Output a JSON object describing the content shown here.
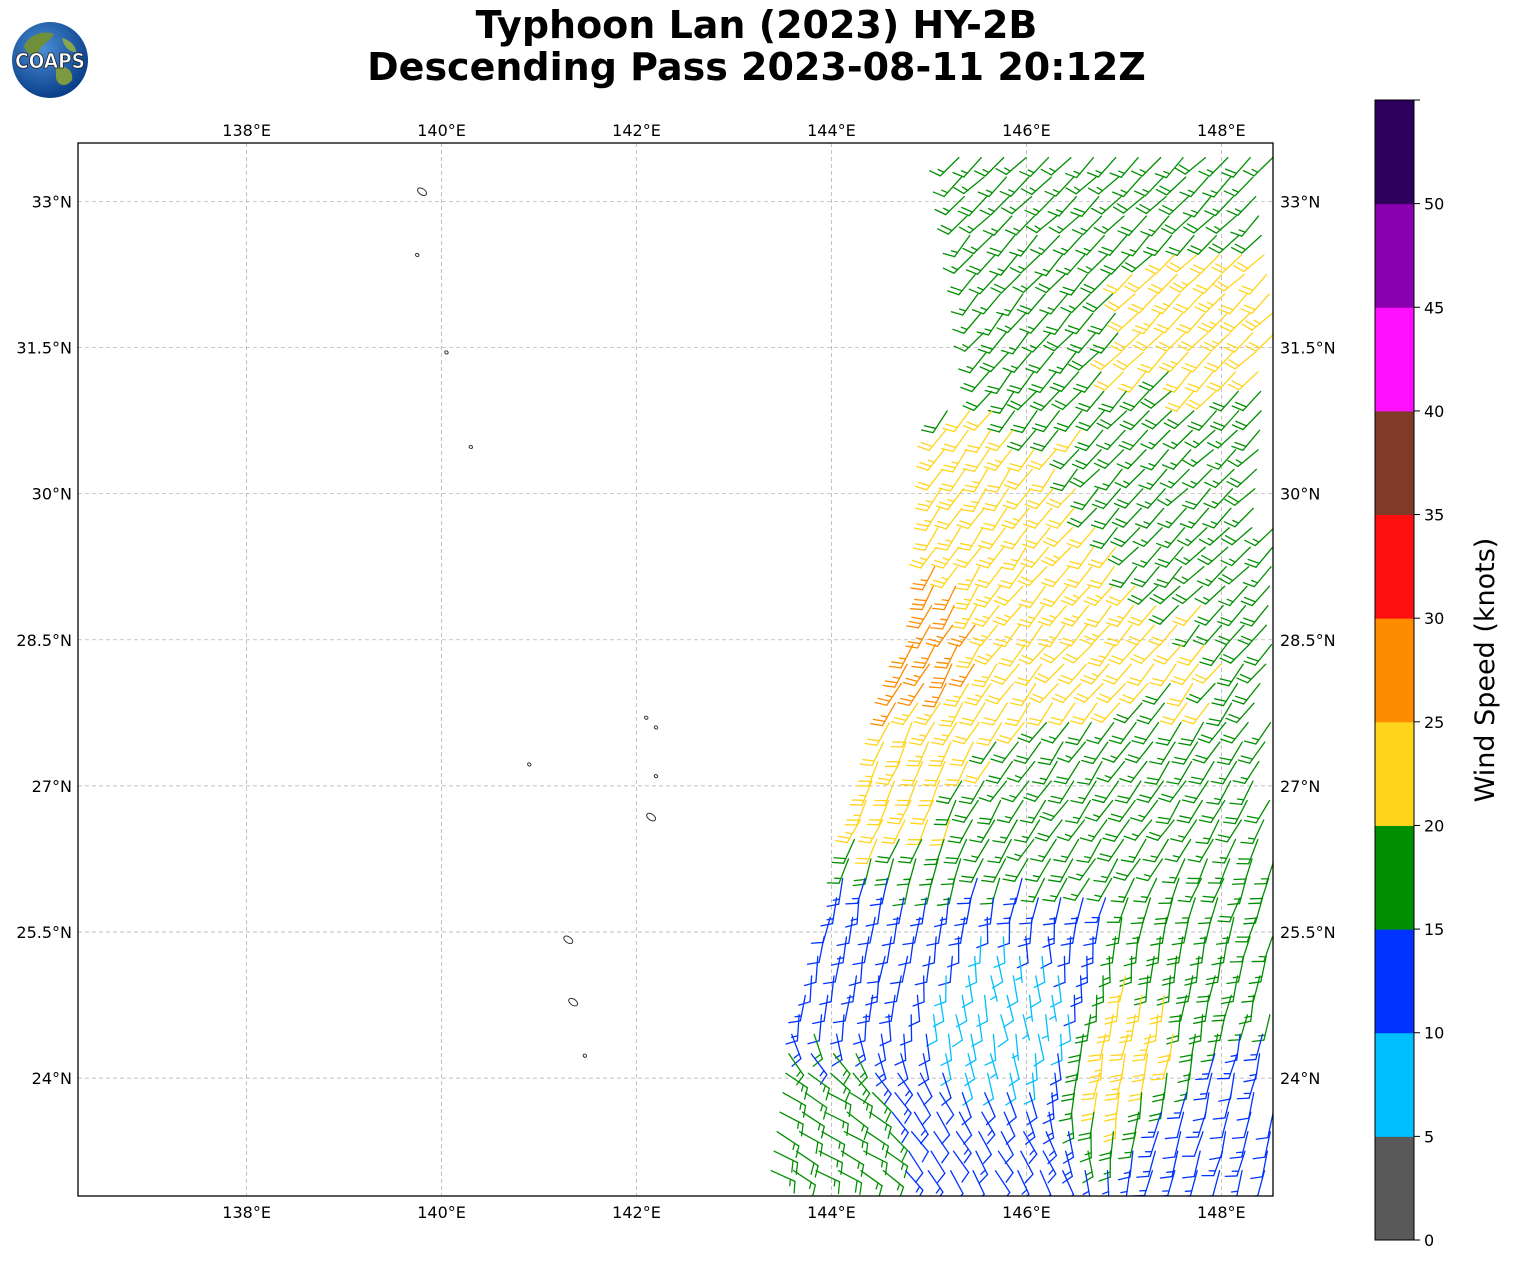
{
  "header": {
    "title_line1": "Typhoon Lan (2023) HY-2B",
    "title_line2": "Descending Pass 2023-08-11 20:12Z",
    "logo_text": "COAPS",
    "logo_icon": "coaps-globe-logo"
  },
  "map": {
    "lon_ticks": [
      {
        "value": 138,
        "label": "138°E"
      },
      {
        "value": 140,
        "label": "140°E"
      },
      {
        "value": 142,
        "label": "142°E"
      },
      {
        "value": 144,
        "label": "144°E"
      },
      {
        "value": 146,
        "label": "146°E"
      },
      {
        "value": 148,
        "label": "148°E"
      }
    ],
    "lat_ticks": [
      {
        "value": 24,
        "label": "24°N"
      },
      {
        "value": 25.5,
        "label": "25.5°N"
      },
      {
        "value": 27,
        "label": "27°N"
      },
      {
        "value": 28.5,
        "label": "28.5°N"
      },
      {
        "value": 30,
        "label": "30°N"
      },
      {
        "value": 31.5,
        "label": "31.5°N"
      },
      {
        "value": 33,
        "label": "33°N"
      }
    ],
    "lon_range": [
      136.27,
      148.53
    ],
    "lat_range": [
      22.79,
      33.6
    ],
    "grid": true,
    "islands": [
      {
        "lon": 139.8,
        "lat": 33.1
      },
      {
        "lon": 139.75,
        "lat": 32.45
      },
      {
        "lon": 140.05,
        "lat": 31.45
      },
      {
        "lon": 140.3,
        "lat": 30.48
      },
      {
        "lon": 142.1,
        "lat": 27.7
      },
      {
        "lon": 142.2,
        "lat": 27.6
      },
      {
        "lon": 140.9,
        "lat": 27.22
      },
      {
        "lon": 142.2,
        "lat": 27.1
      },
      {
        "lon": 142.15,
        "lat": 26.68
      },
      {
        "lon": 141.3,
        "lat": 25.42
      },
      {
        "lon": 141.35,
        "lat": 24.78
      },
      {
        "lon": 141.47,
        "lat": 24.23
      }
    ]
  },
  "colorbar": {
    "title": "Wind Speed (knots)",
    "tick_labels": [
      "0",
      "5",
      "10",
      "15",
      "20",
      "25",
      "30",
      "35",
      "40",
      "45",
      "50"
    ],
    "bins": [
      {
        "min": 0,
        "max": 5,
        "color": "#595959"
      },
      {
        "min": 5,
        "max": 10,
        "color": "#00bfff"
      },
      {
        "min": 10,
        "max": 15,
        "color": "#0033ff"
      },
      {
        "min": 15,
        "max": 20,
        "color": "#008f00"
      },
      {
        "min": 20,
        "max": 25,
        "color": "#ffd41a"
      },
      {
        "min": 25,
        "max": 30,
        "color": "#ff8c00"
      },
      {
        "min": 30,
        "max": 35,
        "color": "#ff1010"
      },
      {
        "min": 35,
        "max": 40,
        "color": "#7f3b27"
      },
      {
        "min": 40,
        "max": 45,
        "color": "#ff10ff"
      },
      {
        "min": 45,
        "max": 50,
        "color": "#8a00b0"
      },
      {
        "min": 50,
        "max": 55,
        "color": "#2e005e"
      }
    ]
  },
  "chart_data": {
    "type": "scatter",
    "title": "Typhoon Lan (2023) HY-2B Descending Pass 2023-08-11 20:12Z",
    "xlabel": "",
    "ylabel": "",
    "xlim": [
      136.27,
      148.53
    ],
    "ylim": [
      22.79,
      33.6
    ],
    "series": [
      {
        "wind_barbs": [
          {
            "lon": 146.0,
            "lat": 33.3,
            "speed": 17,
            "dir": 225
          },
          {
            "lon": 147.0,
            "lat": 33.3,
            "speed": 17,
            "dir": 225
          },
          {
            "lon": 148.0,
            "lat": 33.3,
            "speed": 17,
            "dir": 225
          },
          {
            "lon": 145.6,
            "lat": 32.0,
            "speed": 17,
            "dir": 220
          },
          {
            "lon": 147.9,
            "lat": 32.0,
            "speed": 22,
            "dir": 225
          },
          {
            "lon": 145.2,
            "lat": 30.0,
            "speed": 22,
            "dir": 215
          },
          {
            "lon": 147.9,
            "lat": 30.0,
            "speed": 17,
            "dir": 225
          },
          {
            "lon": 144.9,
            "lat": 28.6,
            "speed": 27,
            "dir": 210
          },
          {
            "lon": 146.5,
            "lat": 28.6,
            "speed": 22,
            "dir": 220
          },
          {
            "lon": 144.4,
            "lat": 27.0,
            "speed": 22,
            "dir": 205
          },
          {
            "lon": 146.6,
            "lat": 27.0,
            "speed": 17,
            "dir": 215
          },
          {
            "lon": 144.2,
            "lat": 25.5,
            "speed": 12,
            "dir": 190
          },
          {
            "lon": 146.0,
            "lat": 24.6,
            "speed": 7,
            "dir": 170
          },
          {
            "lon": 147.0,
            "lat": 24.3,
            "speed": 22,
            "dir": 190
          },
          {
            "lon": 143.8,
            "lat": 23.2,
            "speed": 17,
            "dir": 120
          },
          {
            "lon": 145.5,
            "lat": 23.2,
            "speed": 12,
            "dir": 150
          },
          {
            "lon": 148.0,
            "lat": 23.5,
            "speed": 12,
            "dir": 195
          }
        ]
      }
    ]
  }
}
